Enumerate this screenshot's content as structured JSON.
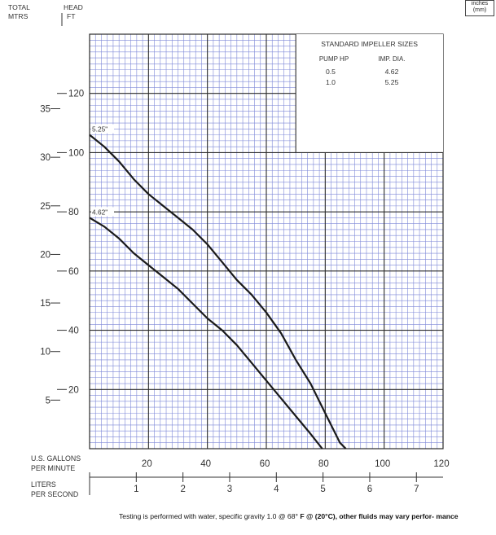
{
  "chart_data": {
    "type": "line",
    "title": "",
    "y_headers": {
      "total": "TOTAL",
      "head": "HEAD",
      "mtrs": "MTRS",
      "ft": "FT"
    },
    "xlabel_gpm": "U.S. GALLONS\nPER MINUTE",
    "xlabel_lps": "LITERS\nPER SECOND",
    "xlim": [
      0,
      120
    ],
    "ylim": [
      0,
      140
    ],
    "x_ticks_gpm": [
      20,
      40,
      60,
      80,
      100,
      120
    ],
    "x_ticks_lps": [
      1,
      2,
      3,
      4,
      5,
      6,
      7
    ],
    "y_ticks_ft": [
      20,
      40,
      60,
      80,
      100,
      120
    ],
    "y_ticks_m": [
      5,
      10,
      15,
      20,
      25,
      30,
      35
    ],
    "grid": true,
    "legend_box": {
      "title": "STANDARD IMPELLER SIZES",
      "col1": "PUMP HP",
      "col2": "IMP. DIA.",
      "rows": [
        {
          "hp": "0.5",
          "dia": "4.62"
        },
        {
          "hp": "1.0",
          "dia": "5.25"
        }
      ]
    },
    "series": [
      {
        "name": "5.25\"",
        "x": [
          0,
          5,
          10,
          15,
          20,
          25,
          30,
          35,
          40,
          45,
          50,
          55,
          60,
          65,
          70,
          75,
          80,
          85,
          87
        ],
        "y": [
          106,
          102,
          97,
          91,
          86,
          82,
          78,
          74,
          69,
          63,
          57,
          52,
          46,
          39,
          30,
          22,
          12,
          2,
          0
        ]
      },
      {
        "name": "4.62\"",
        "x": [
          0,
          5,
          10,
          15,
          20,
          25,
          30,
          35,
          40,
          45,
          50,
          55,
          60,
          65,
          70,
          75,
          79
        ],
        "y": [
          78,
          75,
          71,
          66,
          62,
          58,
          54,
          49,
          44,
          40,
          35,
          29,
          23,
          17,
          11,
          5,
          0
        ]
      }
    ]
  },
  "units_note": "inches\n(mm)",
  "footnote": {
    "normal": "Testing is performed with water, specific gravity 1.0 @ 68° ",
    "bold": "F @ (20°C), other fluids may vary perfor- mance"
  },
  "colors": {
    "grid_minor": "#7e88d8",
    "grid_major": "#2a2a2a",
    "curve": "#1a1a1a"
  }
}
